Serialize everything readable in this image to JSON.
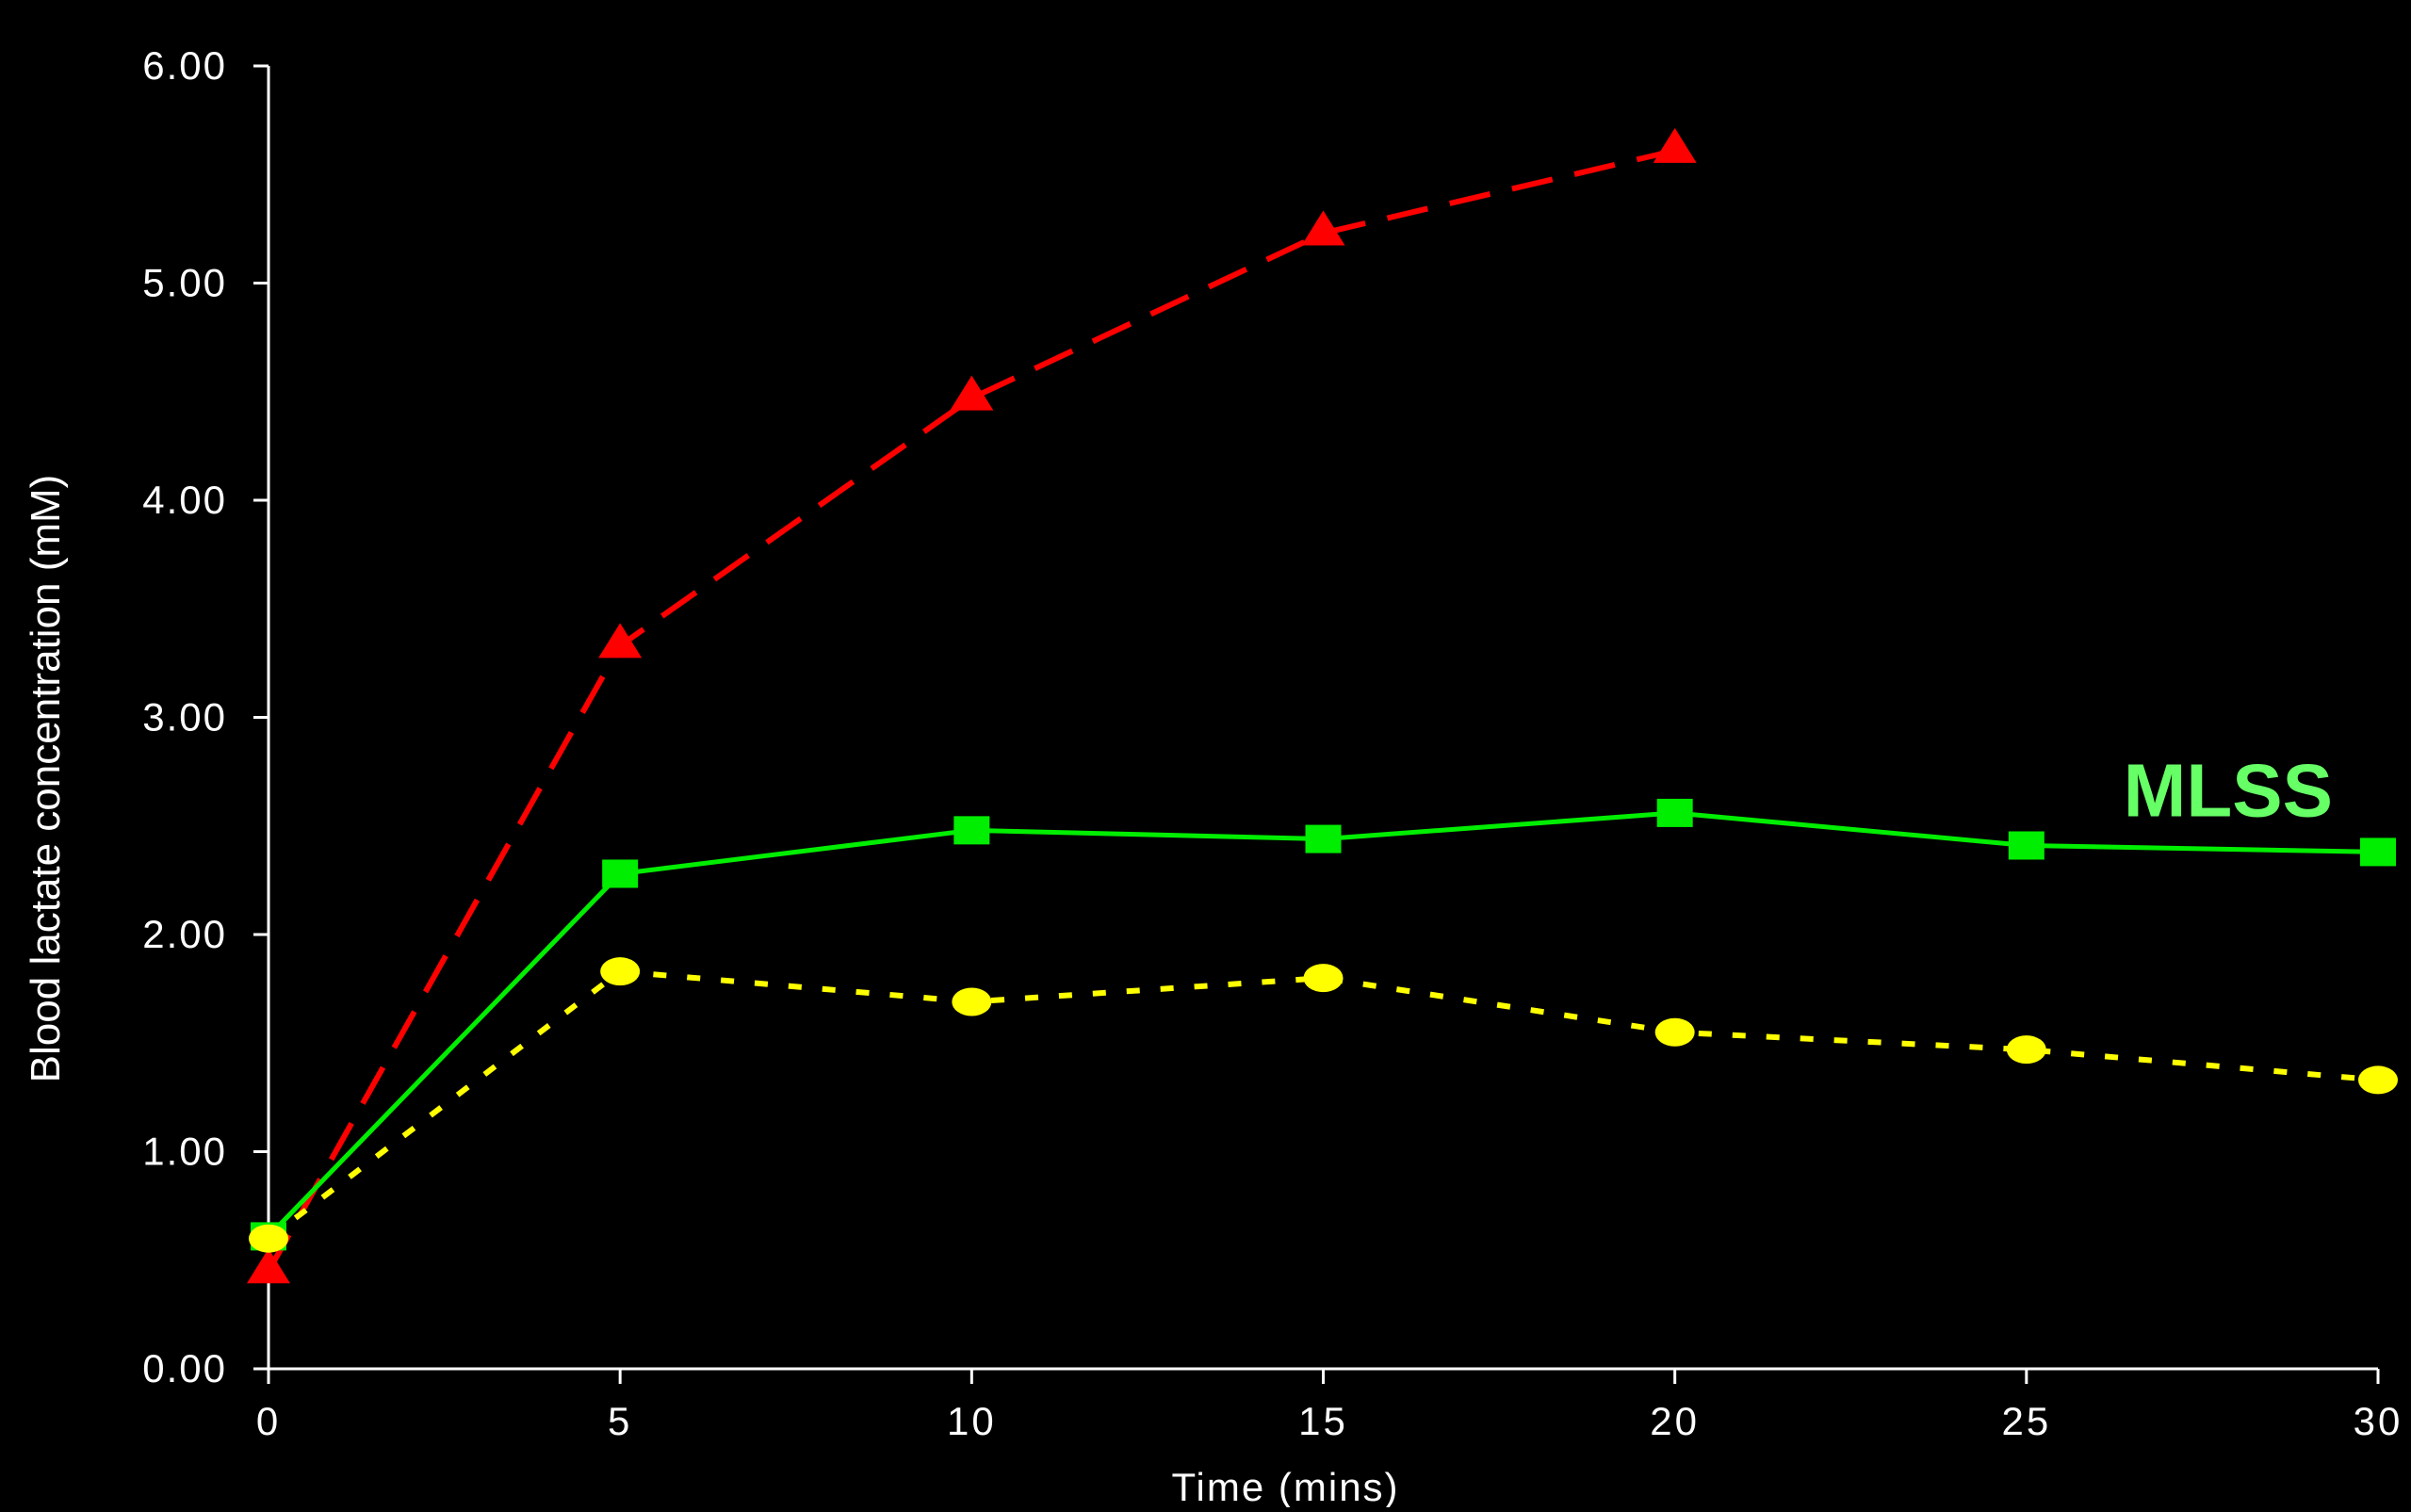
{
  "chart_data": {
    "type": "line",
    "title": "",
    "xlabel": "Time (mins)",
    "ylabel": "Blood lactate concentration (mM)",
    "xlim": [
      0,
      30
    ],
    "ylim": [
      0,
      6
    ],
    "x_ticks": [
      "0",
      "5",
      "10",
      "15",
      "20",
      "25",
      "30"
    ],
    "y_ticks": [
      "0.00",
      "1.00",
      "2.00",
      "3.00",
      "4.00",
      "5.00",
      "6.00"
    ],
    "grid": false,
    "legend": "none",
    "annotations": [
      {
        "text": "MLSS",
        "color": "#66ff66",
        "anchor_series": "mlss"
      }
    ],
    "series": [
      {
        "id": "above",
        "color": "#ff0000",
        "line_style": "dashed",
        "marker": "triangle",
        "x": [
          0,
          5,
          10,
          15,
          20
        ],
        "y": [
          0.45,
          3.33,
          4.47,
          5.23,
          5.61
        ]
      },
      {
        "id": "mlss",
        "color": "#00ee00",
        "line_style": "solid",
        "marker": "square",
        "x": [
          0,
          5,
          10,
          15,
          20,
          25,
          30
        ],
        "y": [
          0.61,
          2.28,
          2.48,
          2.44,
          2.56,
          2.41,
          2.38
        ]
      },
      {
        "id": "below",
        "color": "#ffff00",
        "line_style": "dotted",
        "marker": "circle",
        "x": [
          0,
          5,
          10,
          15,
          20,
          25,
          30
        ],
        "y": [
          0.6,
          1.83,
          1.69,
          1.8,
          1.55,
          1.47,
          1.33
        ]
      }
    ]
  }
}
